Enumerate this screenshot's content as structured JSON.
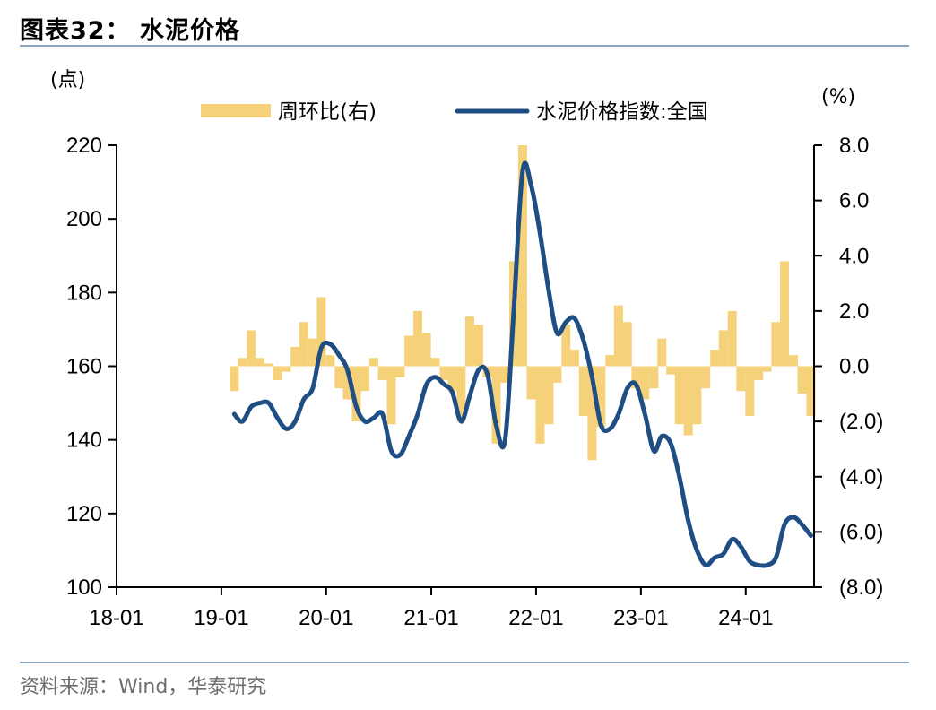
{
  "header": {
    "title": "图表32：  水泥价格"
  },
  "footer": {
    "source": "资料来源：Wind，华泰研究"
  },
  "chart_data": {
    "type": "bar+line",
    "left_unit": "(点)",
    "right_unit": "(%)",
    "left_axis": {
      "ylim": [
        100,
        220
      ],
      "ticks": [
        "100",
        "120",
        "140",
        "160",
        "180",
        "200",
        "220"
      ]
    },
    "right_axis": {
      "ylim": [
        -8,
        8
      ],
      "ticks": [
        "(8.0)",
        "(6.0)",
        "(4.0)",
        "(2.0)",
        "0.0",
        "2.0",
        "4.0",
        "6.0",
        "8.0"
      ]
    },
    "x_ticks": [
      "18-01",
      "19-01",
      "20-01",
      "21-01",
      "22-01",
      "23-01",
      "24-01"
    ],
    "legend": [
      {
        "label": "周环比(右)",
        "type": "bar"
      },
      {
        "label": "水泥价格指数:全国",
        "type": "line"
      }
    ],
    "colors": {
      "line": "#1f4e85",
      "bar": "#f5d27a",
      "axis": "#000000"
    },
    "series_line": {
      "name": "水泥价格指数:全国",
      "points": [
        [
          "2019-02",
          147
        ],
        [
          "2019-03",
          145
        ],
        [
          "2019-04",
          149
        ],
        [
          "2019-05",
          150
        ],
        [
          "2019-06",
          150
        ],
        [
          "2019-07",
          146
        ],
        [
          "2019-08",
          143
        ],
        [
          "2019-09",
          145
        ],
        [
          "2019-10",
          151
        ],
        [
          "2019-11",
          154
        ],
        [
          "2019-12",
          165
        ],
        [
          "2020-01",
          166
        ],
        [
          "2020-02",
          163
        ],
        [
          "2020-03",
          159
        ],
        [
          "2020-04",
          149
        ],
        [
          "2020-05",
          145
        ],
        [
          "2020-06",
          146
        ],
        [
          "2020-07",
          147
        ],
        [
          "2020-08",
          137
        ],
        [
          "2020-09",
          136
        ],
        [
          "2020-10",
          141
        ],
        [
          "2020-11",
          147
        ],
        [
          "2020-12",
          155
        ],
        [
          "2021-01",
          157
        ],
        [
          "2021-02",
          155
        ],
        [
          "2021-03",
          153
        ],
        [
          "2021-04",
          145
        ],
        [
          "2021-05",
          152
        ],
        [
          "2021-06",
          159
        ],
        [
          "2021-07",
          158
        ],
        [
          "2021-08",
          144
        ],
        [
          "2021-09",
          140
        ],
        [
          "2021-10",
          175
        ],
        [
          "2021-11",
          213
        ],
        [
          "2021-12",
          209
        ],
        [
          "2022-01",
          196
        ],
        [
          "2022-02",
          180
        ],
        [
          "2022-03",
          169
        ],
        [
          "2022-04",
          172
        ],
        [
          "2022-05",
          173
        ],
        [
          "2022-06",
          167
        ],
        [
          "2022-07",
          157
        ],
        [
          "2022-08",
          144
        ],
        [
          "2022-09",
          143
        ],
        [
          "2022-10",
          147
        ],
        [
          "2022-11",
          154
        ],
        [
          "2022-12",
          155
        ],
        [
          "2023-01",
          147
        ],
        [
          "2023-02",
          137
        ],
        [
          "2023-03",
          141
        ],
        [
          "2023-04",
          139
        ],
        [
          "2023-05",
          130
        ],
        [
          "2023-06",
          118
        ],
        [
          "2023-07",
          110
        ],
        [
          "2023-08",
          106
        ],
        [
          "2023-09",
          108
        ],
        [
          "2023-10",
          109
        ],
        [
          "2023-11",
          113
        ],
        [
          "2023-12",
          111
        ],
        [
          "2024-01",
          107
        ],
        [
          "2024-02",
          106
        ],
        [
          "2024-03",
          106
        ],
        [
          "2024-04",
          108
        ],
        [
          "2024-05",
          117
        ],
        [
          "2024-06",
          119
        ],
        [
          "2024-07",
          117
        ],
        [
          "2024-08",
          114
        ]
      ]
    },
    "series_bars": {
      "name": "周环比(右)",
      "points": [
        [
          "2019-02",
          -0.9
        ],
        [
          "2019-03",
          0.3
        ],
        [
          "2019-04",
          1.3
        ],
        [
          "2019-05",
          0.3
        ],
        [
          "2019-06",
          0.1
        ],
        [
          "2019-07",
          -0.5
        ],
        [
          "2019-08",
          -0.2
        ],
        [
          "2019-09",
          0.7
        ],
        [
          "2019-10",
          1.6
        ],
        [
          "2019-11",
          1.0
        ],
        [
          "2019-12",
          2.5
        ],
        [
          "2020-01",
          0.4
        ],
        [
          "2020-02",
          -0.8
        ],
        [
          "2020-03",
          -1.2
        ],
        [
          "2020-04",
          -2.0
        ],
        [
          "2020-05",
          -0.9
        ],
        [
          "2020-06",
          0.3
        ],
        [
          "2020-07",
          -0.5
        ],
        [
          "2020-08",
          -2.1
        ],
        [
          "2020-09",
          -0.4
        ],
        [
          "2020-10",
          1.1
        ],
        [
          "2020-11",
          2.0
        ],
        [
          "2020-12",
          1.2
        ],
        [
          "2021-01",
          0.3
        ],
        [
          "2021-02",
          -0.5
        ],
        [
          "2021-03",
          -0.9
        ],
        [
          "2021-04",
          -2.0
        ],
        [
          "2021-05",
          1.8
        ],
        [
          "2021-06",
          1.5
        ],
        [
          "2021-07",
          -0.4
        ],
        [
          "2021-08",
          -2.8
        ],
        [
          "2021-09",
          -0.6
        ],
        [
          "2021-10",
          3.8
        ],
        [
          "2021-11",
          8.0
        ],
        [
          "2021-12",
          -1.2
        ],
        [
          "2022-01",
          -2.8
        ],
        [
          "2022-02",
          -2.1
        ],
        [
          "2022-03",
          -0.6
        ],
        [
          "2022-04",
          1.5
        ],
        [
          "2022-05",
          0.6
        ],
        [
          "2022-06",
          -1.8
        ],
        [
          "2022-07",
          -3.4
        ],
        [
          "2022-08",
          -2.2
        ],
        [
          "2022-09",
          0.4
        ],
        [
          "2022-10",
          2.2
        ],
        [
          "2022-11",
          1.6
        ],
        [
          "2022-12",
          -0.8
        ],
        [
          "2023-01",
          -1.2
        ],
        [
          "2023-02",
          -0.8
        ],
        [
          "2023-03",
          1.0
        ],
        [
          "2023-04",
          -0.3
        ],
        [
          "2023-05",
          -2.1
        ],
        [
          "2023-06",
          -2.5
        ],
        [
          "2023-07",
          -2.1
        ],
        [
          "2023-08",
          -0.8
        ],
        [
          "2023-09",
          0.6
        ],
        [
          "2023-10",
          1.3
        ],
        [
          "2023-11",
          2.0
        ],
        [
          "2023-12",
          -0.9
        ],
        [
          "2024-01",
          -1.8
        ],
        [
          "2024-02",
          -0.5
        ],
        [
          "2024-03",
          -0.2
        ],
        [
          "2024-04",
          1.6
        ],
        [
          "2024-05",
          3.8
        ],
        [
          "2024-06",
          0.4
        ],
        [
          "2024-07",
          -1.0
        ],
        [
          "2024-08",
          -1.8
        ]
      ]
    }
  }
}
